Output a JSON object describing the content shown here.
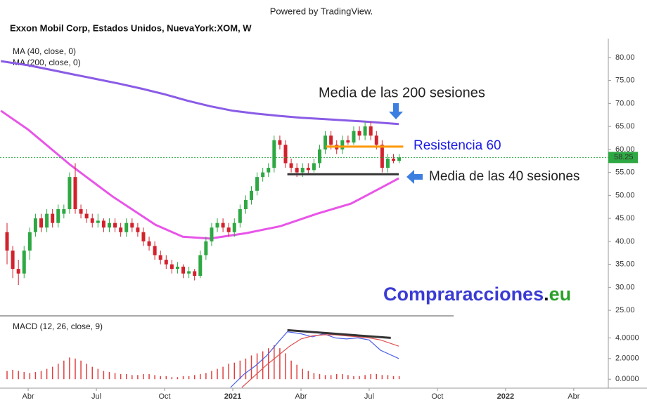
{
  "header": {
    "powered": "Powered by TradingView.",
    "symbol": "Exxon Mobil Corp, Estados Unidos, NuevaYork:XOM, W"
  },
  "watermark": {
    "parts": [
      "Compraracciones",
      ".",
      "eu"
    ]
  },
  "chart_data": [
    {
      "type": "candlestick",
      "x": [
        2.07,
        2.32,
        2.57,
        2.82,
        3.07,
        3.32,
        3.57,
        3.82,
        4.07,
        4.32,
        4.57,
        4.82,
        5.07,
        5.32,
        5.57,
        5.82,
        6.07,
        6.32,
        6.57,
        6.82,
        7.07,
        7.32,
        7.57,
        7.82,
        8.07,
        8.32,
        8.57,
        8.82,
        9.07,
        9.32,
        9.57,
        9.82,
        10.07,
        10.32,
        10.57,
        10.82,
        11.07,
        11.32,
        11.57,
        11.82,
        12.07,
        12.32,
        12.57,
        12.82,
        13.07,
        13.32,
        13.57,
        13.82,
        14.07,
        14.32,
        14.57,
        14.82,
        15.07,
        15.32,
        15.57,
        15.82,
        16.07,
        16.32,
        16.57,
        16.82,
        17.07,
        17.32,
        17.57,
        17.82,
        18.07,
        18.32,
        18.57,
        18.82,
        19.07,
        19.32
      ],
      "open": [
        42,
        38,
        34,
        33,
        38,
        42,
        45,
        43,
        46,
        44,
        46,
        47,
        54,
        47,
        46,
        45,
        44,
        44.5,
        43,
        44,
        43,
        42,
        44,
        43,
        42,
        40,
        39,
        37,
        36,
        35,
        34,
        34.5,
        33,
        33.5,
        32.5,
        37,
        40,
        43,
        44,
        43,
        42,
        44,
        47,
        49,
        51,
        54,
        55,
        56,
        62,
        61,
        57,
        56,
        55,
        56,
        55.5,
        57,
        60,
        63,
        61,
        60,
        62,
        61.5,
        64,
        63,
        65,
        63,
        61,
        56,
        58,
        57.5
      ],
      "high": [
        44,
        39,
        36,
        39,
        43,
        46,
        46,
        47,
        47,
        48,
        48,
        55,
        57,
        48,
        47,
        46,
        46,
        45,
        45,
        45,
        44,
        45,
        45,
        44,
        43,
        41,
        40,
        38,
        37,
        36,
        35.5,
        35,
        34.5,
        34,
        38,
        41,
        44,
        45,
        45,
        44,
        45,
        48,
        50,
        52,
        55,
        56,
        57,
        63,
        63,
        62,
        58,
        57,
        57,
        57,
        58,
        61,
        64,
        64,
        62,
        63,
        63,
        65,
        65,
        66,
        66,
        64,
        62,
        59,
        59,
        59
      ],
      "low": [
        35,
        32,
        30.5,
        32,
        36,
        41,
        42,
        42,
        43,
        43,
        45,
        46,
        46,
        45,
        44,
        43,
        43,
        42,
        42,
        42,
        41,
        41,
        42,
        41,
        39,
        38,
        36,
        35,
        34,
        33,
        33,
        32,
        32,
        31.5,
        32,
        36,
        39,
        42,
        42,
        41,
        41,
        43,
        46,
        48,
        50,
        53,
        54,
        55,
        60,
        56,
        55,
        54,
        54,
        54.5,
        55,
        56,
        59,
        60,
        59,
        59,
        61,
        61,
        62,
        62,
        62,
        60,
        55,
        55,
        57,
        57
      ],
      "close": [
        38,
        34,
        33,
        38,
        42,
        45,
        43,
        46,
        44,
        47,
        47,
        54,
        47,
        46,
        45,
        44,
        44.5,
        43,
        44,
        43,
        42,
        44,
        43,
        42,
        40,
        39,
        37,
        36,
        35,
        34,
        34.5,
        33,
        33.5,
        32.5,
        37,
        40,
        43,
        44,
        43,
        42,
        44,
        47,
        49,
        51,
        54,
        55,
        56,
        62,
        61,
        57,
        56,
        55,
        56,
        55.5,
        57,
        60,
        63,
        61,
        60,
        62,
        61.5,
        64,
        63,
        65,
        63,
        61,
        56,
        58,
        57.5,
        58.25
      ],
      "up_color": "#2ea843",
      "down_color": "#d2222d",
      "xlim": [
        1.76,
        28.52
      ],
      "xticks": [
        {
          "value": 3,
          "label": "Abr"
        },
        {
          "value": 6,
          "label": "Jul"
        },
        {
          "value": 9,
          "label": "Oct"
        },
        {
          "value": 12,
          "label": "2021"
        },
        {
          "value": 15,
          "label": "Abr"
        },
        {
          "value": 18,
          "label": "Jul"
        },
        {
          "value": 21,
          "label": "Oct"
        },
        {
          "value": 24,
          "label": "2022"
        },
        {
          "value": 27,
          "label": "Abr"
        }
      ],
      "ylim": [
        24.1,
        84.1
      ],
      "yticks": [
        {
          "value": 25,
          "label": "25.00"
        },
        {
          "value": 30,
          "label": "30.00"
        },
        {
          "value": 35,
          "label": "35.00"
        },
        {
          "value": 40,
          "label": "40.00"
        },
        {
          "value": 45,
          "label": "45.00"
        },
        {
          "value": 50,
          "label": "50.00"
        },
        {
          "value": 55,
          "label": "55.00"
        },
        {
          "value": 60,
          "label": "60.00"
        },
        {
          "value": 65,
          "label": "65.00"
        },
        {
          "value": 70,
          "label": "70.00"
        },
        {
          "value": 75,
          "label": "75.00"
        },
        {
          "value": 80,
          "label": "80.00"
        }
      ],
      "series": [
        {
          "name": "MA (40, close, 0)",
          "color": "#e855e8",
          "x": [
            1.8,
            3,
            4.86,
            6.7,
            8.6,
            9.8,
            11,
            12.6,
            14.1,
            15.7,
            17.2,
            18.5,
            19.3
          ],
          "values": [
            68.4,
            64.3,
            56.6,
            49.8,
            43.6,
            41,
            40.6,
            41.8,
            43.3,
            46,
            48.2,
            51.6,
            53.7
          ]
        },
        {
          "name": "MA (200, close, 0)",
          "color": "#8a5ce6",
          "x": [
            1.8,
            3,
            4,
            5,
            6,
            7,
            8,
            9,
            10,
            11,
            12,
            13,
            14,
            15,
            16,
            17,
            18,
            19.3
          ],
          "values": [
            79.2,
            78.3,
            77.3,
            76.3,
            75.3,
            74.3,
            73.2,
            72.0,
            70.6,
            69.4,
            68.4,
            67.8,
            67.3,
            66.9,
            66.6,
            66.3,
            66.0,
            65.5
          ]
        }
      ],
      "lines": [
        {
          "color": "#333333",
          "x": [
            14.4,
            19.3
          ],
          "values": [
            54.6,
            54.6
          ]
        },
        {
          "color": "#ff9800",
          "x": [
            16.1,
            19.5
          ],
          "values": [
            60.6,
            60.6
          ]
        }
      ],
      "last_price": 58.25,
      "last_price_color": "#2ea843",
      "annotations": [
        "Media de las 200 sesiones",
        "Resistencia 60",
        "Media de las 40 sesiones"
      ]
    },
    {
      "type": "macd",
      "title": "MACD (12, 26, close, 9)",
      "x": [
        2.07,
        2.32,
        2.57,
        2.82,
        3.07,
        3.32,
        3.57,
        3.82,
        4.07,
        4.32,
        4.57,
        4.82,
        5.07,
        5.32,
        5.57,
        5.82,
        6.07,
        6.32,
        6.57,
        6.82,
        7.07,
        7.32,
        7.57,
        7.82,
        8.07,
        8.32,
        8.57,
        8.82,
        9.07,
        9.32,
        9.57,
        9.82,
        10.07,
        10.32,
        10.57,
        10.82,
        11.07,
        11.32,
        11.57,
        11.82,
        12.07,
        12.32,
        12.57,
        12.82,
        13.07,
        13.32,
        13.57,
        13.82,
        14.07,
        14.32,
        14.57,
        14.82,
        15.07,
        15.32,
        15.57,
        15.82,
        16.07,
        16.32,
        16.57,
        16.82,
        17.07,
        17.32,
        17.57,
        17.82,
        18.07,
        18.32,
        18.57,
        18.82,
        19.07,
        19.32
      ],
      "histogram": [
        0.8,
        0.9,
        0.8,
        0.7,
        0.6,
        0.7,
        0.8,
        1.0,
        1.2,
        1.5,
        1.8,
        2.1,
        2.0,
        1.8,
        1.5,
        1.2,
        1.0,
        0.8,
        0.7,
        0.6,
        0.5,
        0.5,
        0.4,
        0.4,
        0.5,
        0.5,
        0.4,
        0.3,
        0.3,
        0.2,
        0.2,
        0.3,
        0.3,
        0.4,
        0.5,
        0.6,
        0.8,
        1.0,
        1.2,
        1.5,
        1.6,
        1.8,
        2.0,
        2.3,
        2.5,
        2.7,
        3.0,
        3.3,
        3.0,
        2.5,
        1.8,
        1.4,
        1.0,
        0.8,
        0.6,
        0.5,
        0.4,
        0.4,
        0.5,
        0.5,
        0.4,
        0.3,
        0.3,
        0.4,
        0.5,
        0.5,
        0.4,
        0.4,
        0.3,
        0.3
      ],
      "histogram_color": "#e04040",
      "xlim": [
        1.76,
        28.52
      ],
      "ylim": [
        -0.87,
        6.0
      ],
      "yticks": [
        {
          "value": 0,
          "label": "0.0000"
        },
        {
          "value": 2,
          "label": "2.0000"
        },
        {
          "value": 4,
          "label": "4.0000"
        }
      ],
      "lines": [
        {
          "color": "#4a5ee8",
          "x": [
            11.9,
            12.5,
            13,
            13.5,
            14,
            14.4,
            15,
            15.5,
            16,
            16.5,
            17,
            17.5,
            18,
            18.5,
            19.3
          ],
          "values": [
            -0.8,
            0.5,
            1.3,
            2.3,
            3.6,
            4.6,
            4.4,
            4.1,
            4.4,
            4.0,
            3.9,
            4.0,
            3.8,
            2.8,
            2.0
          ]
        },
        {
          "color": "#e05050",
          "x": [
            12.4,
            13,
            13.5,
            14,
            14.5,
            15,
            15.5,
            16,
            16.5,
            17,
            17.5,
            18,
            18.5,
            19.3
          ],
          "values": [
            -0.8,
            0.4,
            1.4,
            2.3,
            3.2,
            3.9,
            4.2,
            4.3,
            4.3,
            4.2,
            4.1,
            4.0,
            3.8,
            3.2
          ]
        },
        {
          "color": "#333333",
          "x": [
            14.4,
            18.95
          ],
          "values": [
            4.75,
            4.0
          ]
        }
      ]
    }
  ]
}
